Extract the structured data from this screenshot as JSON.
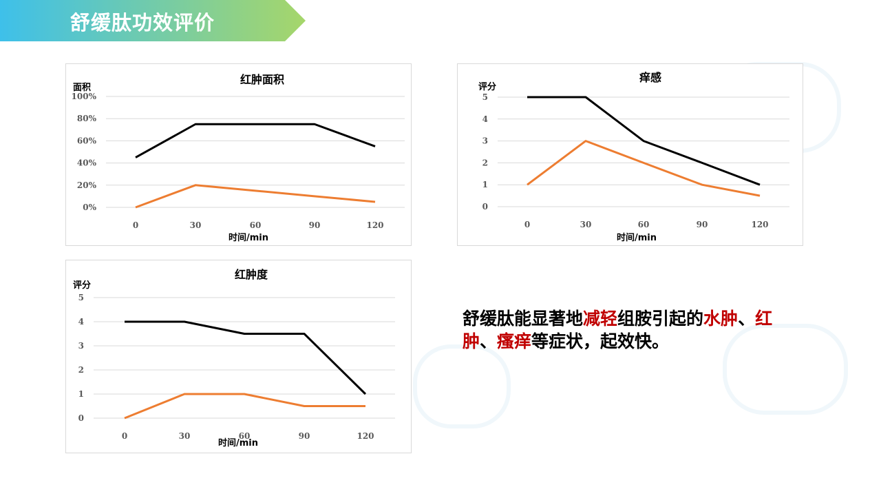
{
  "header": {
    "title": "舒缓肽功效评价",
    "gradient": [
      "#3ec0ea",
      "#a6d66a"
    ]
  },
  "colors": {
    "series1": "#000000",
    "series2": "#ed7d31",
    "grid": "#d9d9d9"
  },
  "chart_data": [
    {
      "id": "chart1",
      "type": "line",
      "title": "红肿面积",
      "ylabel": "面积",
      "xlabel": "时间/min",
      "categories": [
        "0",
        "30",
        "60",
        "90",
        "120"
      ],
      "yticks": [
        "0%",
        "20%",
        "40%",
        "60%",
        "80%",
        "100%"
      ],
      "ylim": [
        0,
        100
      ],
      "series": [
        {
          "values": [
            45,
            75,
            75,
            75,
            55
          ]
        },
        {
          "values": [
            0,
            20,
            15,
            10,
            5
          ]
        }
      ]
    },
    {
      "id": "chart2",
      "type": "line",
      "title": "痒感",
      "ylabel": "评分",
      "xlabel": "时间/min",
      "categories": [
        "0",
        "30",
        "60",
        "90",
        "120"
      ],
      "yticks": [
        "0",
        "1",
        "2",
        "3",
        "4",
        "5"
      ],
      "ylim": [
        0,
        5
      ],
      "series": [
        {
          "values": [
            5,
            5,
            3,
            2,
            1
          ]
        },
        {
          "values": [
            1,
            3,
            2,
            1,
            0.5
          ]
        }
      ]
    },
    {
      "id": "chart3",
      "type": "line",
      "title": "红肿度",
      "ylabel": "评分",
      "xlabel": "时间/min",
      "categories": [
        "0",
        "30",
        "60",
        "90",
        "120"
      ],
      "yticks": [
        "0",
        "1",
        "2",
        "3",
        "4",
        "5"
      ],
      "ylim": [
        0,
        5
      ],
      "series": [
        {
          "values": [
            4,
            4,
            3.5,
            3.5,
            1
          ]
        },
        {
          "values": [
            0,
            1,
            1,
            0.5,
            0.5
          ]
        }
      ]
    }
  ],
  "description": {
    "parts": [
      {
        "text": "舒缓肽能显著地",
        "red": false
      },
      {
        "text": "减轻",
        "red": true
      },
      {
        "text": "组胺引起的",
        "red": false
      },
      {
        "text": "水肿",
        "red": true
      },
      {
        "text": "、",
        "red": false
      },
      {
        "text": "红肿",
        "red": true
      },
      {
        "text": "、",
        "red": false
      },
      {
        "text": "瘙痒",
        "red": true
      },
      {
        "text": "等症状，起效快。",
        "red": false
      }
    ]
  }
}
